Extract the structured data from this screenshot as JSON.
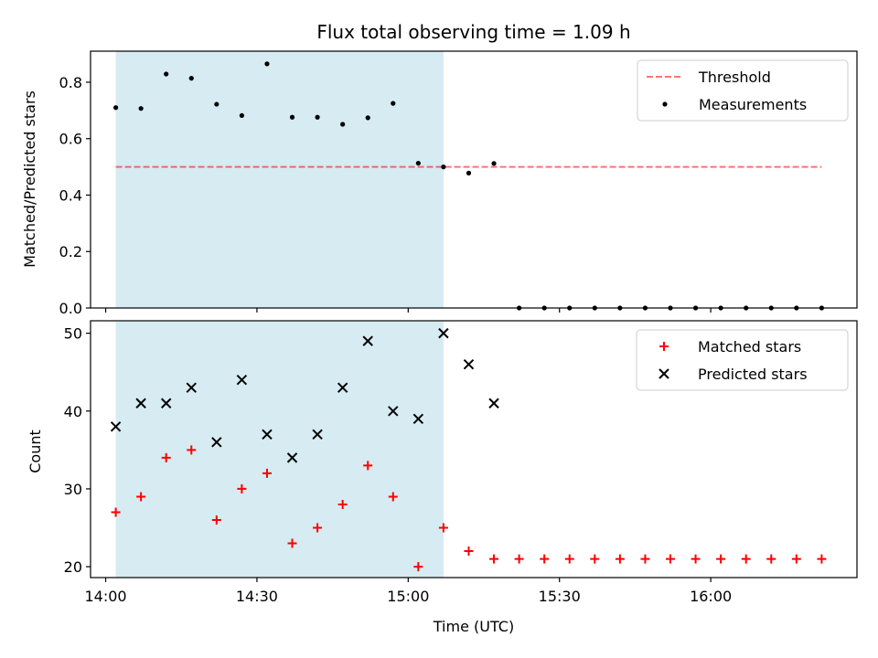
{
  "chart_data": [
    {
      "type": "scatter",
      "title": "Flux total observing time = 1.09 h",
      "xlabel": "",
      "ylabel": "Matched/Predicted stars",
      "xlim": [
        "13:57",
        "16:29"
      ],
      "ylim": [
        0,
        0.91
      ],
      "yticks": [
        0.0,
        0.2,
        0.4,
        0.6,
        0.8
      ],
      "ytick_labels": [
        "0.0",
        "0.2",
        "0.4",
        "0.6",
        "0.8"
      ],
      "shaded_span": {
        "from": "14:02",
        "to": "15:07",
        "color": "#add8e6"
      },
      "threshold": {
        "name": "Threshold",
        "value": 0.5,
        "from": "14:02",
        "to": "16:22",
        "color": "#ff0000"
      },
      "legend": {
        "position": "top-right",
        "entries": [
          "Threshold",
          "Measurements"
        ]
      },
      "series": [
        {
          "name": "Measurements",
          "color": "#000000",
          "marker": "dot",
          "x": [
            "14:02",
            "14:07",
            "14:12",
            "14:17",
            "14:22",
            "14:27",
            "14:32",
            "14:37",
            "14:42",
            "14:47",
            "14:52",
            "14:57",
            "15:02",
            "15:07",
            "15:12",
            "15:17",
            "15:22",
            "15:27",
            "15:32",
            "15:37",
            "15:42",
            "15:47",
            "15:52",
            "15:57",
            "16:02",
            "16:07",
            "16:12",
            "16:17",
            "16:22"
          ],
          "y": [
            0.71,
            0.707,
            0.829,
            0.814,
            0.722,
            0.682,
            0.865,
            0.676,
            0.676,
            0.651,
            0.674,
            0.725,
            0.513,
            0.5,
            0.478,
            0.512,
            0,
            0,
            0,
            0,
            0,
            0,
            0,
            0,
            0,
            0,
            0,
            0,
            0
          ]
        }
      ]
    },
    {
      "type": "scatter",
      "title": "",
      "xlabel": "Time (UTC)",
      "ylabel": "Count",
      "xlim": [
        "13:57",
        "16:29"
      ],
      "ylim": [
        18.6,
        51.6
      ],
      "xticks": [
        "14:00",
        "14:30",
        "15:00",
        "15:30",
        "16:00"
      ],
      "xtick_labels": [
        "14:00",
        "14:30",
        "15:00",
        "15:30",
        "16:00"
      ],
      "yticks": [
        20,
        30,
        40,
        50
      ],
      "ytick_labels": [
        "20",
        "30",
        "40",
        "50"
      ],
      "shaded_span": {
        "from": "14:02",
        "to": "15:07",
        "color": "#add8e6"
      },
      "legend": {
        "position": "top-right",
        "entries": [
          "Matched stars",
          "Predicted stars"
        ]
      },
      "series": [
        {
          "name": "Matched stars",
          "color": "#ff0000",
          "marker": "plus",
          "x": [
            "14:02",
            "14:07",
            "14:12",
            "14:17",
            "14:22",
            "14:27",
            "14:32",
            "14:37",
            "14:42",
            "14:47",
            "14:52",
            "14:57",
            "15:02",
            "15:07",
            "15:12",
            "15:17",
            "15:22",
            "15:27",
            "15:32",
            "15:37",
            "15:42",
            "15:47",
            "15:52",
            "15:57",
            "16:02",
            "16:07",
            "16:12",
            "16:17",
            "16:22"
          ],
          "y": [
            27,
            29,
            34,
            35,
            26,
            30,
            32,
            23,
            25,
            28,
            33,
            29,
            20,
            25,
            22,
            21,
            21,
            21,
            21,
            21,
            21,
            21,
            21,
            21,
            21,
            21,
            21,
            21,
            21
          ]
        },
        {
          "name": "Predicted stars",
          "color": "#000000",
          "marker": "x",
          "x": [
            "14:02",
            "14:07",
            "14:12",
            "14:17",
            "14:22",
            "14:27",
            "14:32",
            "14:37",
            "14:42",
            "14:47",
            "14:52",
            "14:57",
            "15:02",
            "15:07",
            "15:12",
            "15:17"
          ],
          "y": [
            38,
            41,
            41,
            43,
            36,
            44,
            37,
            34,
            37,
            43,
            49,
            40,
            39,
            50,
            46,
            41
          ]
        }
      ]
    }
  ]
}
